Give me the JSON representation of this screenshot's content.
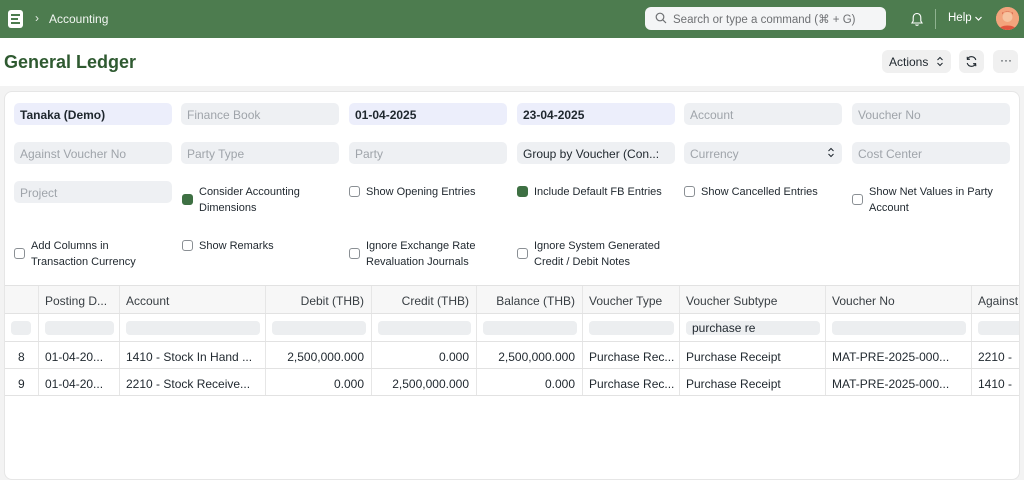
{
  "navbar": {
    "breadcrumb": "Accounting",
    "search_placeholder": "Search or type a command (⌘ + G)",
    "help_label": "Help",
    "icons": [
      "app-logo-icon",
      "chevron-right-icon",
      "search-icon",
      "bell-icon",
      "chevron-down-icon",
      "avatar"
    ]
  },
  "page": {
    "title": "General Ledger",
    "actions_label": "Actions",
    "more_label": "···"
  },
  "filters": {
    "company": "Tanaka (Demo)",
    "finance_book": "Finance Book",
    "from_date": "01-04-2025",
    "to_date": "23-04-2025",
    "account": "Account",
    "voucher_no": "Voucher No",
    "against_voucher_no": "Against Voucher No",
    "party_type": "Party Type",
    "party": "Party",
    "group_by": "Group by Voucher (Con..:",
    "currency": "Currency",
    "cost_center": "Cost Center",
    "project": "Project"
  },
  "checkboxes": [
    {
      "label1": "Consider Accounting",
      "label2": "Dimensions",
      "checked": true
    },
    {
      "label1": "Show Opening Entries",
      "label2": "",
      "checked": false
    },
    {
      "label1": "Include Default FB Entries",
      "label2": "",
      "checked": true
    },
    {
      "label1": "Show Cancelled Entries",
      "label2": "",
      "checked": false
    },
    {
      "label1": "Show Net Values in Party",
      "label2": "Account",
      "checked": false
    },
    {
      "label1": "Add Columns in",
      "label2": "Transaction Currency",
      "checked": false
    },
    {
      "label1": "Show Remarks",
      "label2": "",
      "checked": false
    },
    {
      "label1": "Ignore Exchange Rate",
      "label2": "Revaluation Journals",
      "checked": false
    },
    {
      "label1": "Ignore System Generated",
      "label2": "Credit / Debit Notes",
      "checked": false
    }
  ],
  "table": {
    "columns": [
      "Posting D...",
      "Account",
      "Debit (THB)",
      "Credit (THB)",
      "Balance (THB)",
      "Voucher Type",
      "Voucher Subtype",
      "Voucher No",
      "Against"
    ],
    "filter_voucher_subtype": "purchase re",
    "rows": [
      {
        "idx": "8",
        "posting_date": "01-04-20...",
        "account": "1410 - Stock In Hand ...",
        "debit": "2,500,000.000",
        "credit": "0.000",
        "balance": "2,500,000.000",
        "voucher_type": "Purchase Rec...",
        "voucher_subtype": "Purchase Receipt",
        "voucher_no": "MAT-PRE-2025-000...",
        "against": "2210 -"
      },
      {
        "idx": "9",
        "posting_date": "01-04-20...",
        "account": "2210 - Stock Receive...",
        "debit": "0.000",
        "credit": "2,500,000.000",
        "balance": "0.000",
        "voucher_type": "Purchase Rec...",
        "voucher_subtype": "Purchase Receipt",
        "voucher_no": "MAT-PRE-2025-000...",
        "against": "1410 -"
      }
    ]
  },
  "colors": {
    "navbar": "#4d7c4f",
    "title": "#2f5a31",
    "checkbox_on": "#3e7043"
  }
}
